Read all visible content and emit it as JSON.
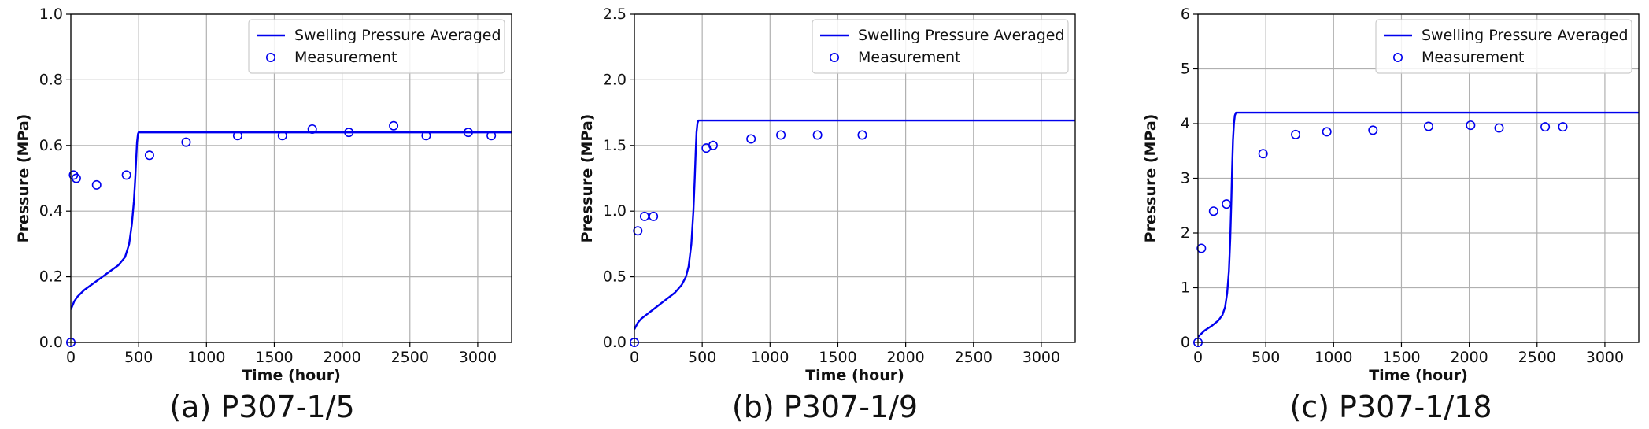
{
  "colors": {
    "series": "#0000ee",
    "grid": "#b0b0b0",
    "axis": "#000000"
  },
  "chart_data": [
    {
      "type": "line",
      "caption": "(a) P307-1/5",
      "xlabel": "Time (hour)",
      "ylabel": "Pressure (MPa)",
      "xlim": [
        0,
        3250
      ],
      "ylim": [
        0,
        1.0
      ],
      "xticks": [
        0,
        500,
        1000,
        1500,
        2000,
        2500,
        3000
      ],
      "yticks": [
        0.0,
        0.2,
        0.4,
        0.6,
        0.8,
        1.0
      ],
      "ytick_labels": [
        "0.0",
        "0.2",
        "0.4",
        "0.6",
        "0.8",
        "1.0"
      ],
      "grid": true,
      "legend": {
        "placement": "top-right",
        "entries": [
          "Swelling Pressure Averaged",
          "Measurement"
        ]
      },
      "series": [
        {
          "name": "Swelling Pressure Averaged",
          "style": "line",
          "x": [
            0,
            25,
            50,
            100,
            150,
            200,
            250,
            300,
            350,
            400,
            430,
            450,
            465,
            475,
            482,
            488,
            495,
            500,
            3250
          ],
          "y": [
            0.1,
            0.125,
            0.14,
            0.16,
            0.175,
            0.19,
            0.205,
            0.22,
            0.235,
            0.26,
            0.3,
            0.36,
            0.43,
            0.5,
            0.56,
            0.61,
            0.635,
            0.64,
            0.64
          ]
        },
        {
          "name": "Measurement",
          "style": "markers",
          "x": [
            0,
            20,
            40,
            190,
            410,
            580,
            850,
            1230,
            1560,
            1780,
            2050,
            2380,
            2620,
            2930,
            3100
          ],
          "y": [
            0.0,
            0.51,
            0.5,
            0.48,
            0.51,
            0.57,
            0.61,
            0.63,
            0.63,
            0.65,
            0.64,
            0.66,
            0.63,
            0.64,
            0.63
          ]
        }
      ]
    },
    {
      "type": "line",
      "caption": "(b) P307-1/9",
      "xlabel": "Time (hour)",
      "ylabel": "Pressure (MPa)",
      "xlim": [
        0,
        3250
      ],
      "ylim": [
        0,
        2.5
      ],
      "xticks": [
        0,
        500,
        1000,
        1500,
        2000,
        2500,
        3000
      ],
      "yticks": [
        0.0,
        0.5,
        1.0,
        1.5,
        2.0,
        2.5
      ],
      "ytick_labels": [
        "0.0",
        "0.5",
        "1.0",
        "1.5",
        "2.0",
        "2.5"
      ],
      "grid": true,
      "legend": {
        "placement": "top-right",
        "entries": [
          "Swelling Pressure Averaged",
          "Measurement"
        ]
      },
      "series": [
        {
          "name": "Swelling Pressure Averaged",
          "style": "line",
          "x": [
            0,
            25,
            50,
            100,
            150,
            200,
            250,
            300,
            350,
            380,
            400,
            420,
            435,
            445,
            452,
            458,
            465,
            472,
            3250
          ],
          "y": [
            0.1,
            0.15,
            0.18,
            0.22,
            0.26,
            0.3,
            0.34,
            0.38,
            0.44,
            0.5,
            0.58,
            0.75,
            1.0,
            1.25,
            1.45,
            1.6,
            1.67,
            1.69,
            1.69
          ]
        },
        {
          "name": "Measurement",
          "style": "markers",
          "x": [
            0,
            25,
            75,
            140,
            530,
            580,
            860,
            1080,
            1350,
            1680
          ],
          "y": [
            0.0,
            0.85,
            0.96,
            0.96,
            1.48,
            1.5,
            1.55,
            1.58,
            1.58,
            1.58
          ]
        }
      ]
    },
    {
      "type": "line",
      "caption": "(c) P307-1/18",
      "xlabel": "Time (hour)",
      "ylabel": "Pressure (MPa)",
      "xlim": [
        0,
        3250
      ],
      "ylim": [
        0,
        6
      ],
      "xticks": [
        0,
        500,
        1000,
        1500,
        2000,
        2500,
        3000
      ],
      "yticks": [
        0,
        1,
        2,
        3,
        4,
        5,
        6
      ],
      "ytick_labels": [
        "0",
        "1",
        "2",
        "3",
        "4",
        "5",
        "6"
      ],
      "grid": true,
      "legend": {
        "placement": "top-right",
        "entries": [
          "Swelling Pressure Averaged",
          "Measurement"
        ]
      },
      "series": [
        {
          "name": "Swelling Pressure Averaged",
          "style": "line",
          "x": [
            0,
            20,
            50,
            100,
            150,
            180,
            200,
            215,
            228,
            238,
            246,
            252,
            258,
            265,
            272,
            280,
            3250
          ],
          "y": [
            0.1,
            0.15,
            0.22,
            0.3,
            0.4,
            0.5,
            0.65,
            0.9,
            1.3,
            1.9,
            2.6,
            3.2,
            3.7,
            4.0,
            4.15,
            4.2,
            4.2
          ]
        },
        {
          "name": "Measurement",
          "style": "markers",
          "x": [
            0,
            25,
            115,
            210,
            480,
            720,
            950,
            1290,
            1700,
            2010,
            2220,
            2560,
            2690
          ],
          "y": [
            0.0,
            1.72,
            2.4,
            2.53,
            3.45,
            3.8,
            3.85,
            3.88,
            3.95,
            3.97,
            3.92,
            3.94,
            3.94
          ]
        }
      ]
    }
  ]
}
